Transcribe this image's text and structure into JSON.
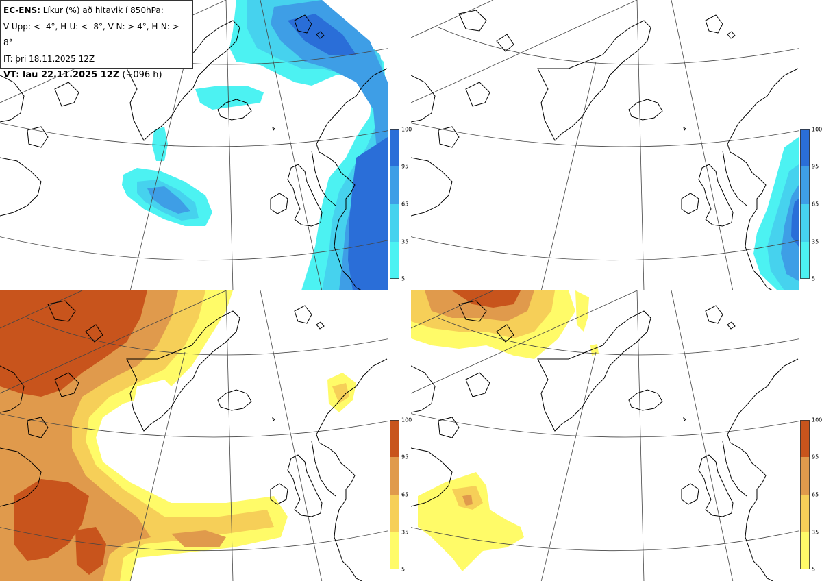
{
  "title_prefix": "EC-ENS:",
  "title_rest": "Líkur (%) að hitavik í 850hPa:",
  "legend_line": "V-Upp: < -4°, H-U: < -8°, V-N: > 4°, H-N: > 8°",
  "it_line": "IT: þri 18.11.2025 12Z",
  "vt_bold": "VT: lau 22.11.2025 12Z",
  "vt_rest": "(+096 h)",
  "colorbar_ticks": [
    "100",
    "95",
    "65",
    "35",
    "5"
  ],
  "colors": {
    "cold_levels": [
      "#4cf2f2",
      "#46d2ee",
      "#3e9ee6",
      "#2a6ed8"
    ],
    "warm_levels": [
      "#fffb68",
      "#f6cf58",
      "#e09a4c",
      "#c8541c"
    ],
    "coast": "#000000",
    "grid": "#444444"
  },
  "panels": [
    {
      "name": "V-Upp",
      "variable": "probability anomaly < -4°",
      "scheme": "cold"
    },
    {
      "name": "H-U",
      "variable": "probability anomaly < -8°",
      "scheme": "cold"
    },
    {
      "name": "V-N",
      "variable": "probability anomaly > 4°",
      "scheme": "warm"
    },
    {
      "name": "H-N",
      "variable": "probability anomaly > 8°",
      "scheme": "warm"
    }
  ]
}
